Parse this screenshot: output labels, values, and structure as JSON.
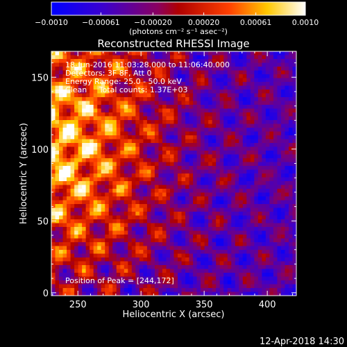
{
  "chart_data": {
    "type": "heatmap",
    "title": "Reconstructed RHESSI Image",
    "xlabel": "Heliocentric X (arcsec)",
    "ylabel": "Heliocentric Y (arcsec)",
    "xlim": [
      229,
      423
    ],
    "ylim": [
      -2,
      168
    ],
    "x_ticks": [
      250,
      300,
      350,
      400
    ],
    "y_ticks": [
      0,
      50,
      100,
      150
    ],
    "colorbar": {
      "range": [
        -0.001,
        0.001
      ],
      "tick_values": [
        -0.001,
        -0.00061,
        -0.0002,
        0.0002,
        0.00061,
        0.001
      ],
      "tick_labels": [
        "−0.0010",
        "−0.00061",
        "−0.00020",
        "0.00020",
        "0.00061",
        "0.0010"
      ],
      "units": "(photons cm⁻² s⁻¹ asec⁻²)",
      "colormap": "blue-purple-red-yellow-white"
    },
    "annotations": [
      "18-Jun-2016 11:03:28.000 to 11:06:40.000",
      "Detectors: 3F 8F, Att 0",
      "Energy Range: 25.0 - 50.0 keV",
      "Clean     Total counts: 1.37E+03"
    ],
    "peak_label": "Position of Peak = [244,172]",
    "peak_position": [
      244,
      172
    ]
  },
  "footer": {
    "timestamp": "12-Apr-2018 14:30"
  }
}
